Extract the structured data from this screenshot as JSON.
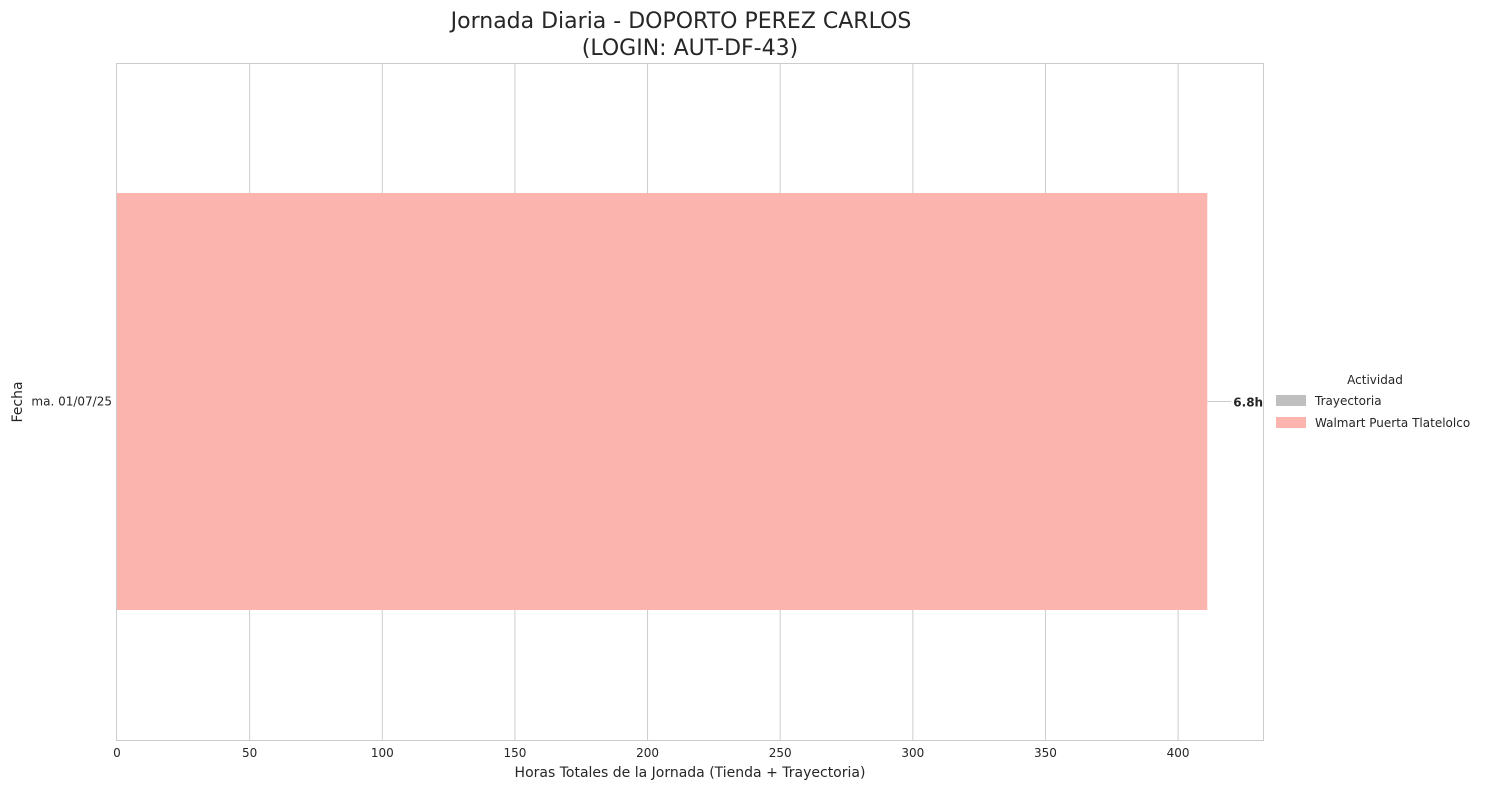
{
  "chart_data": {
    "type": "bar",
    "orientation": "horizontal",
    "stacked": true,
    "title": "Jornada Diaria - DOPORTO PEREZ CARLOS",
    "subtitle": "(LOGIN: AUT-DF-43)",
    "xlabel": "Horas Totales de la Jornada (Tienda + Trayectoria)",
    "ylabel": "Fecha",
    "xlim": [
      0,
      432
    ],
    "xticks": [
      0,
      50,
      100,
      150,
      200,
      250,
      300,
      350,
      400
    ],
    "categories": [
      "ma. 01/07/25"
    ],
    "series": [
      {
        "name": "Trayectoria",
        "color": "#bfbfbf",
        "values": [
          0
        ]
      },
      {
        "name": "Walmart Puerta Tlatelolco",
        "color": "#fbb4ae",
        "values": [
          411
        ]
      }
    ],
    "data_labels": [
      "6.8h"
    ],
    "legend": {
      "title": "Actividad",
      "placement": "right"
    },
    "grid": true
  }
}
